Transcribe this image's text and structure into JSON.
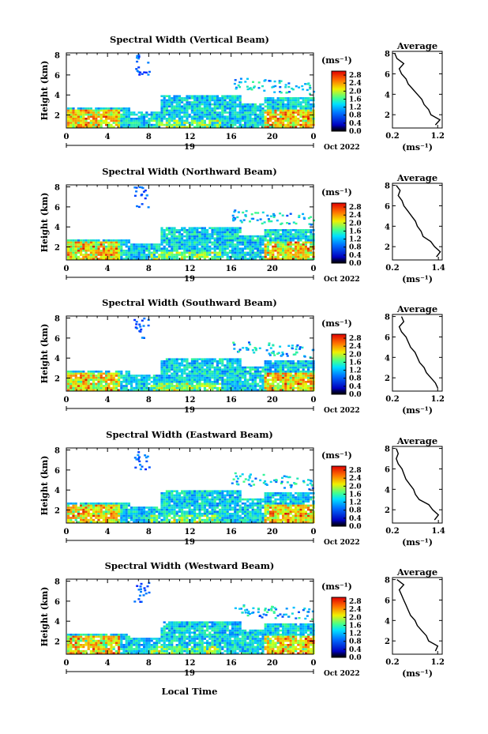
{
  "figure": {
    "xlabel": "Local Time",
    "day_label": "19",
    "month_label": "Oct 2022",
    "ylabel": "Height (km)",
    "unit_label": "(ms⁻¹)",
    "average_title": "Average",
    "avg_unit_label": "(ms⁻¹)"
  },
  "chart_data": [
    {
      "type": "heatmap",
      "title": "Spectral Width (Vertical Beam)",
      "x_ticks": [
        "0",
        "4",
        "8",
        "12",
        "16",
        "20",
        "0"
      ],
      "xlim": [
        0,
        24
      ],
      "y_ticks": [
        "2",
        "4",
        "6",
        "8"
      ],
      "ylim": [
        0.7,
        8.2
      ],
      "colorbar": {
        "ticks": [
          "0.0",
          "0.4",
          "0.8",
          "1.2",
          "1.6",
          "2.0",
          "2.4",
          "2.8"
        ],
        "range": [
          0,
          3.0
        ]
      },
      "average_profile": {
        "type": "line",
        "x_ticks": [
          "0.2",
          "1.2"
        ],
        "xlim": [
          0.2,
          1.3
        ],
        "y_ticks": [
          "2",
          "4",
          "6",
          "8"
        ],
        "ylim": [
          0.7,
          8.2
        ],
        "height": [
          1.0,
          1.5,
          2.0,
          2.5,
          3.0,
          3.5,
          4.0,
          4.5,
          5.0,
          5.5,
          6.0,
          6.5,
          7.0,
          7.5,
          8.0
        ],
        "width": [
          1.15,
          1.25,
          1.05,
          1.0,
          0.9,
          0.85,
          0.75,
          0.65,
          0.55,
          0.5,
          0.4,
          0.35,
          0.45,
          0.3,
          0.25
        ]
      }
    },
    {
      "type": "heatmap",
      "title": "Spectral Width (Northward Beam)",
      "x_ticks": [
        "0",
        "4",
        "8",
        "12",
        "16",
        "20",
        "0"
      ],
      "xlim": [
        0,
        24
      ],
      "y_ticks": [
        "2",
        "4",
        "6",
        "8"
      ],
      "ylim": [
        0.7,
        8.2
      ],
      "colorbar": {
        "ticks": [
          "0.0",
          "0.4",
          "0.8",
          "1.2",
          "1.6",
          "2.0",
          "2.4",
          "2.8"
        ],
        "range": [
          0,
          3.0
        ]
      },
      "average_profile": {
        "type": "line",
        "x_ticks": [
          "0.2",
          "1.4"
        ],
        "xlim": [
          0.2,
          1.5
        ],
        "y_ticks": [
          "2",
          "4",
          "6",
          "8"
        ],
        "ylim": [
          0.7,
          8.2
        ],
        "height": [
          1.0,
          1.5,
          2.0,
          2.5,
          3.0,
          3.5,
          4.0,
          4.5,
          5.0,
          5.5,
          6.0,
          6.5,
          7.0,
          7.5,
          8.0
        ],
        "width": [
          1.35,
          1.45,
          1.3,
          1.2,
          1.0,
          0.95,
          0.85,
          0.8,
          0.7,
          0.6,
          0.5,
          0.45,
          0.35,
          0.4,
          0.3
        ]
      }
    },
    {
      "type": "heatmap",
      "title": "Spectral Width (Southward Beam)",
      "x_ticks": [
        "0",
        "4",
        "8",
        "12",
        "16",
        "20",
        "0"
      ],
      "xlim": [
        0,
        24
      ],
      "y_ticks": [
        "2",
        "4",
        "6",
        "8"
      ],
      "ylim": [
        0.7,
        8.2
      ],
      "colorbar": {
        "ticks": [
          "0.0",
          "0.4",
          "0.8",
          "1.2",
          "1.6",
          "2.0",
          "2.4",
          "2.8"
        ],
        "range": [
          0,
          3.0
        ]
      },
      "average_profile": {
        "type": "line",
        "x_ticks": [
          "0.2",
          "1.2"
        ],
        "xlim": [
          0.2,
          1.3
        ],
        "y_ticks": [
          "2",
          "4",
          "6",
          "8"
        ],
        "ylim": [
          0.7,
          8.2
        ],
        "height": [
          1.0,
          1.5,
          2.0,
          2.5,
          3.0,
          3.5,
          4.0,
          4.5,
          5.0,
          5.5,
          6.0,
          6.5,
          7.0,
          7.5,
          8.0
        ],
        "width": [
          1.2,
          1.15,
          1.05,
          0.95,
          0.9,
          0.8,
          0.75,
          0.7,
          0.6,
          0.55,
          0.5,
          0.4,
          0.35,
          0.45,
          0.4
        ]
      }
    },
    {
      "type": "heatmap",
      "title": "Spectral Width (Eastward Beam)",
      "x_ticks": [
        "0",
        "4",
        "8",
        "12",
        "16",
        "20",
        "0"
      ],
      "xlim": [
        0,
        24
      ],
      "y_ticks": [
        "2",
        "4",
        "6",
        "8"
      ],
      "ylim": [
        0.7,
        8.2
      ],
      "colorbar": {
        "ticks": [
          "0.0",
          "0.4",
          "0.8",
          "1.2",
          "1.6",
          "2.0",
          "2.4",
          "2.8"
        ],
        "range": [
          0,
          3.0
        ]
      },
      "average_profile": {
        "type": "line",
        "x_ticks": [
          "0.2",
          "1.4"
        ],
        "xlim": [
          0.2,
          1.5
        ],
        "y_ticks": [
          "2",
          "4",
          "6",
          "8"
        ],
        "ylim": [
          0.7,
          8.2
        ],
        "height": [
          1.0,
          1.5,
          2.0,
          2.5,
          3.0,
          3.5,
          4.0,
          4.5,
          5.0,
          5.5,
          6.0,
          6.5,
          7.0,
          7.5,
          8.0
        ],
        "width": [
          1.3,
          1.4,
          1.25,
          1.15,
          0.9,
          0.8,
          0.75,
          0.65,
          0.55,
          0.5,
          0.45,
          0.35,
          0.3,
          0.35,
          0.3
        ]
      }
    },
    {
      "type": "heatmap",
      "title": "Spectral Width (Westward Beam)",
      "x_ticks": [
        "0",
        "4",
        "8",
        "12",
        "16",
        "20",
        "0"
      ],
      "xlim": [
        0,
        24
      ],
      "y_ticks": [
        "2",
        "4",
        "6",
        "8"
      ],
      "ylim": [
        0.7,
        8.2
      ],
      "colorbar": {
        "ticks": [
          "0.0",
          "0.4",
          "0.8",
          "1.2",
          "1.6",
          "2.0",
          "2.4",
          "2.8"
        ],
        "range": [
          0,
          3.0
        ]
      },
      "average_profile": {
        "type": "line",
        "x_ticks": [
          "0.2",
          "1.2"
        ],
        "xlim": [
          0.2,
          1.3
        ],
        "y_ticks": [
          "2",
          "4",
          "6",
          "8"
        ],
        "ylim": [
          0.7,
          8.2
        ],
        "height": [
          1.0,
          1.5,
          2.0,
          2.5,
          3.0,
          3.5,
          4.0,
          4.5,
          5.0,
          5.5,
          6.0,
          6.5,
          7.0,
          7.5,
          8.0
        ],
        "width": [
          1.15,
          1.2,
          1.0,
          0.95,
          0.85,
          0.75,
          0.7,
          0.6,
          0.55,
          0.5,
          0.45,
          0.4,
          0.35,
          0.45,
          0.3
        ]
      }
    }
  ]
}
